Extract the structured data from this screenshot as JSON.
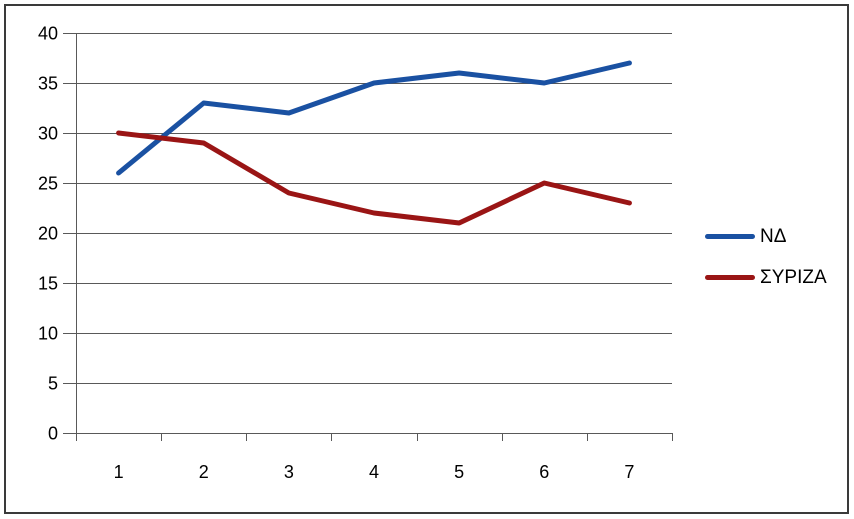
{
  "chart_data": {
    "type": "line",
    "title": "",
    "xlabel": "",
    "ylabel": "",
    "categories": [
      "1",
      "2",
      "3",
      "4",
      "5",
      "6",
      "7"
    ],
    "series": [
      {
        "name": "ΝΔ",
        "color": "#1a51a2",
        "values": [
          26,
          33,
          32,
          35,
          36,
          35,
          37
        ]
      },
      {
        "name": "ΣΥΡΙΖΑ",
        "color": "#9a1515",
        "values": [
          30,
          29,
          24,
          22,
          21,
          25,
          23
        ]
      }
    ],
    "ylim": [
      0,
      40
    ],
    "ytick_step": 5,
    "yticks": [
      0,
      5,
      10,
      15,
      20,
      25,
      30,
      35,
      40
    ],
    "grid": true,
    "legend_position": "right"
  },
  "colors": {
    "grid": "#595959",
    "axis": "#595959",
    "tick": "#595959",
    "text": "#000000",
    "border": "#3a3a3a",
    "background": "#ffffff"
  }
}
